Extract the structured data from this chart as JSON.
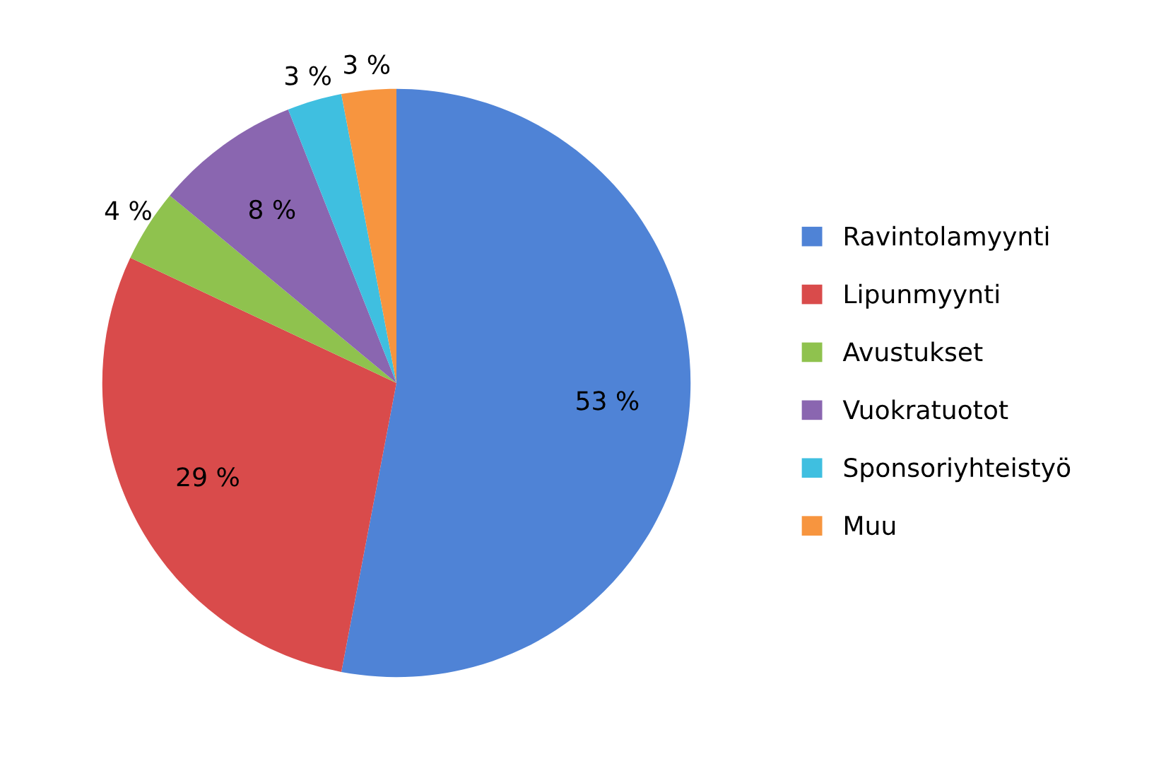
{
  "chart_data": {
    "type": "pie",
    "categories": [
      "Ravintolamyynti",
      "Lipunmyynti",
      "Avustukset",
      "Vuokratuotot",
      "Sponsoriyhteistyö",
      "Muu"
    ],
    "values": [
      53,
      29,
      4,
      8,
      3,
      3
    ],
    "value_labels": [
      "53 %",
      "29 %",
      "4 %",
      "8 %",
      "3 %",
      "3 %"
    ],
    "colors": [
      "#4f83d6",
      "#d94b4b",
      "#8fc24e",
      "#8a66b0",
      "#3fbfe0",
      "#f7953f"
    ],
    "legend": "right"
  }
}
